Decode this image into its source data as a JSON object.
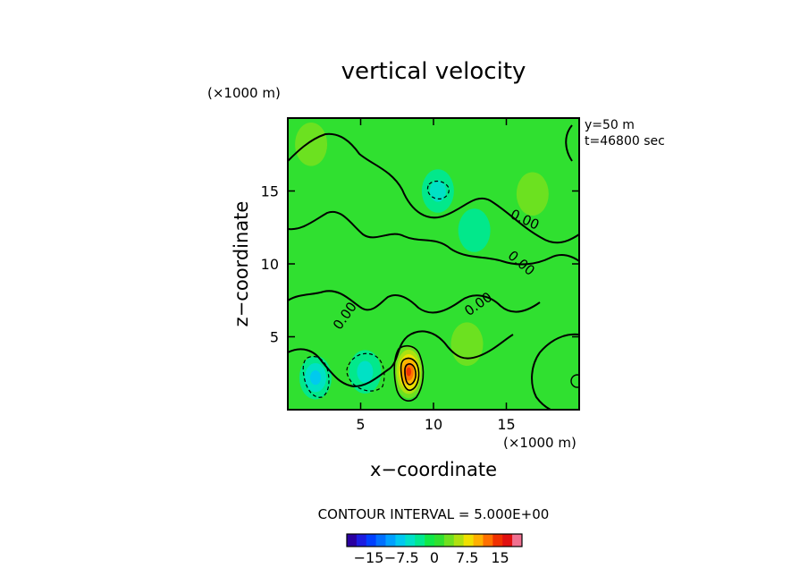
{
  "chart_data": {
    "type": "heatmap",
    "title": "vertical velocity",
    "xlabel": "x−coordinate",
    "ylabel": "z−coordinate",
    "x_unit": "(×1000 m)",
    "y_unit": "(×1000 m)",
    "xlim": [
      0,
      20
    ],
    "ylim": [
      0,
      20
    ],
    "x_ticks": [
      5,
      10,
      15
    ],
    "y_ticks": [
      5,
      10,
      15
    ],
    "info": [
      "y=50  m",
      "t=46800 sec"
    ],
    "contour_interval_text": "CONTOUR INTERVAL = 5.000E+00",
    "contour_level_labels": [
      "0.00",
      "0.00",
      "0.00",
      "0.00",
      "0.00",
      "0.00"
    ],
    "colorbar": {
      "min": -20,
      "max": 20,
      "tick_values": [
        -15,
        -7.5,
        0,
        7.5,
        15
      ],
      "tick_labels": [
        "−15",
        "−7.5",
        "0",
        "7.5",
        "15"
      ],
      "colors": [
        "#2a00a0",
        "#1c1ce0",
        "#0040ff",
        "#0070ff",
        "#00a0ff",
        "#00c8f0",
        "#00e0c8",
        "#00e890",
        "#10e848",
        "#30e030",
        "#70e020",
        "#b0e010",
        "#f0e000",
        "#ffb000",
        "#ff7000",
        "#f03000",
        "#e01010",
        "#f07090"
      ]
    },
    "features": [
      {
        "kind": "updraft",
        "x": 8.3,
        "z": 2.6,
        "peak": 16
      },
      {
        "kind": "downdraft",
        "x": 1.9,
        "z": 2.2,
        "peak": -8
      },
      {
        "kind": "downdraft",
        "x": 5.3,
        "z": 2.6,
        "peak": -6
      },
      {
        "kind": "downdraft",
        "x": 10.3,
        "z": 15.0,
        "peak": -6
      },
      {
        "kind": "downdraft",
        "x": 12.8,
        "z": 12.3,
        "peak": -3
      },
      {
        "kind": "updraft",
        "x": 16.8,
        "z": 14.8,
        "peak": 3
      },
      {
        "kind": "updraft",
        "x": 12.3,
        "z": 4.5,
        "peak": 2
      },
      {
        "kind": "updraft",
        "x": 1.6,
        "z": 18.2,
        "peak": 2
      }
    ]
  }
}
